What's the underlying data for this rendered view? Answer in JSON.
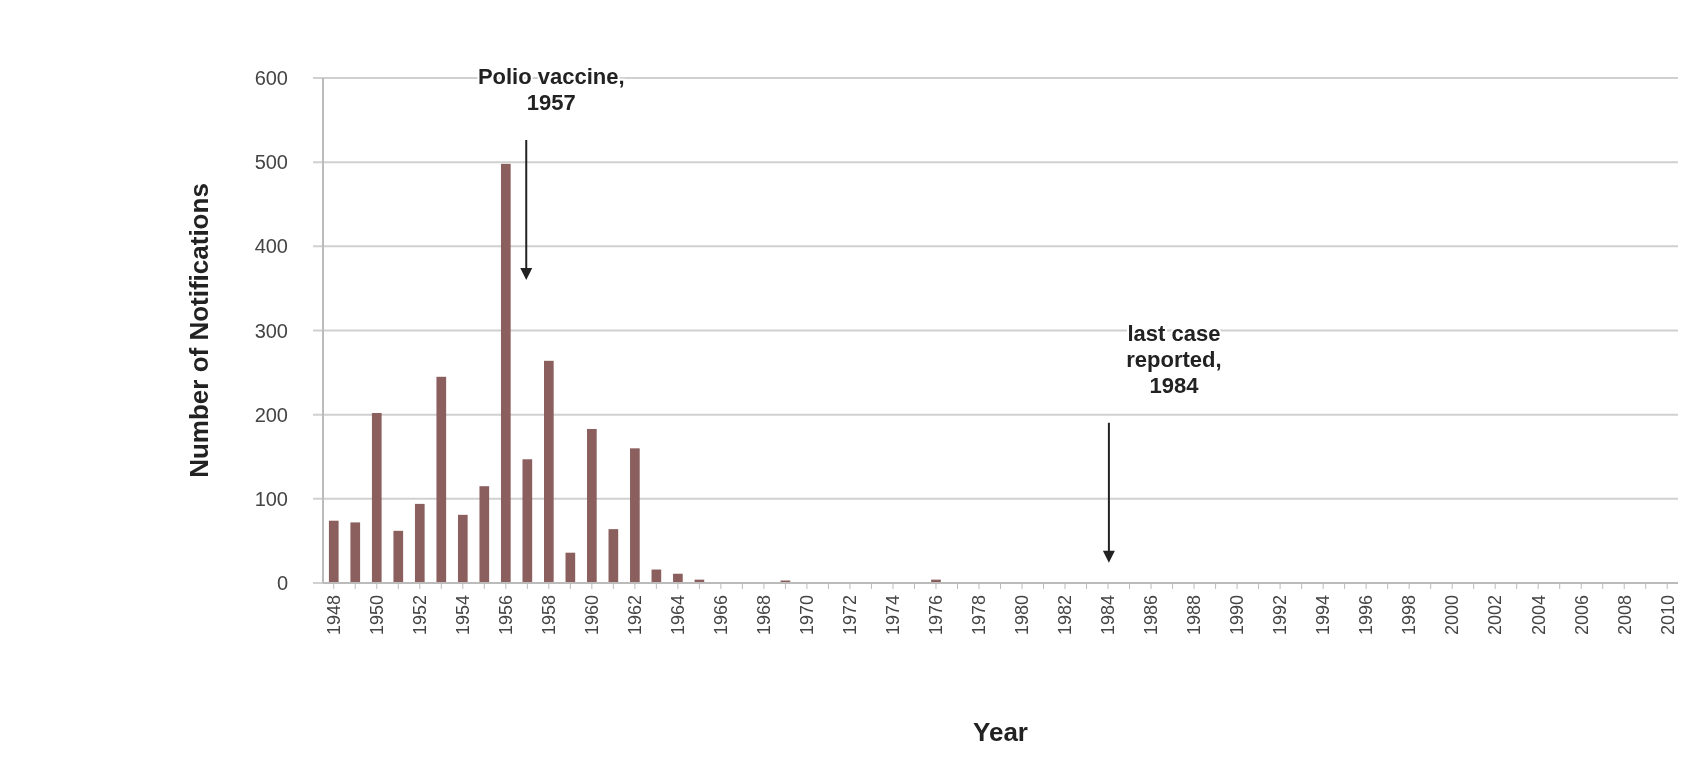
{
  "chart_data": {
    "type": "bar",
    "xlabel": "Year",
    "ylabel": "Number of Notifications",
    "x": [
      1948,
      1949,
      1950,
      1951,
      1952,
      1953,
      1954,
      1955,
      1956,
      1957,
      1958,
      1959,
      1960,
      1961,
      1962,
      1963,
      1964,
      1965,
      1966,
      1967,
      1968,
      1969,
      1970,
      1971,
      1972,
      1973,
      1974,
      1975,
      1976,
      1977,
      1978,
      1979,
      1980,
      1981,
      1982,
      1983,
      1984,
      1985,
      1986,
      1987,
      1988,
      1989,
      1990,
      1991,
      1992,
      1993,
      1994,
      1995,
      1996,
      1997,
      1998,
      1999,
      2000,
      2001,
      2002,
      2003,
      2004,
      2005,
      2006,
      2007,
      2008,
      2009,
      2010
    ],
    "values": [
      74,
      72,
      202,
      62,
      94,
      245,
      81,
      115,
      498,
      147,
      264,
      36,
      183,
      64,
      160,
      16,
      11,
      4,
      null,
      0,
      null,
      3,
      null,
      0,
      0,
      0,
      0,
      0,
      4,
      0,
      0,
      0,
      0,
      0,
      0,
      0,
      null,
      0,
      0,
      0,
      0,
      0,
      0,
      0,
      0,
      0,
      0,
      0,
      0,
      0,
      0,
      0,
      0,
      0,
      0,
      0,
      0,
      0,
      0,
      0,
      0,
      0,
      0
    ],
    "color": "#8c5f5f",
    "xlim": [
      1947.5,
      2010.5
    ],
    "xticks": [
      1948,
      1950,
      1952,
      1954,
      1956,
      1958,
      1960,
      1962,
      1964,
      1966,
      1968,
      1970,
      1972,
      1974,
      1976,
      1978,
      1980,
      1982,
      1984,
      1986,
      1988,
      1990,
      1992,
      1994,
      1996,
      1998,
      2000,
      2002,
      2004,
      2006,
      2008,
      2010
    ],
    "ylim": [
      0,
      600
    ],
    "yticks": [
      0,
      100,
      200,
      300,
      400,
      500,
      600
    ],
    "grid": "y",
    "annotations": [
      "Polio vaccine,\n1957",
      "last case\nreported,\n1984"
    ]
  }
}
